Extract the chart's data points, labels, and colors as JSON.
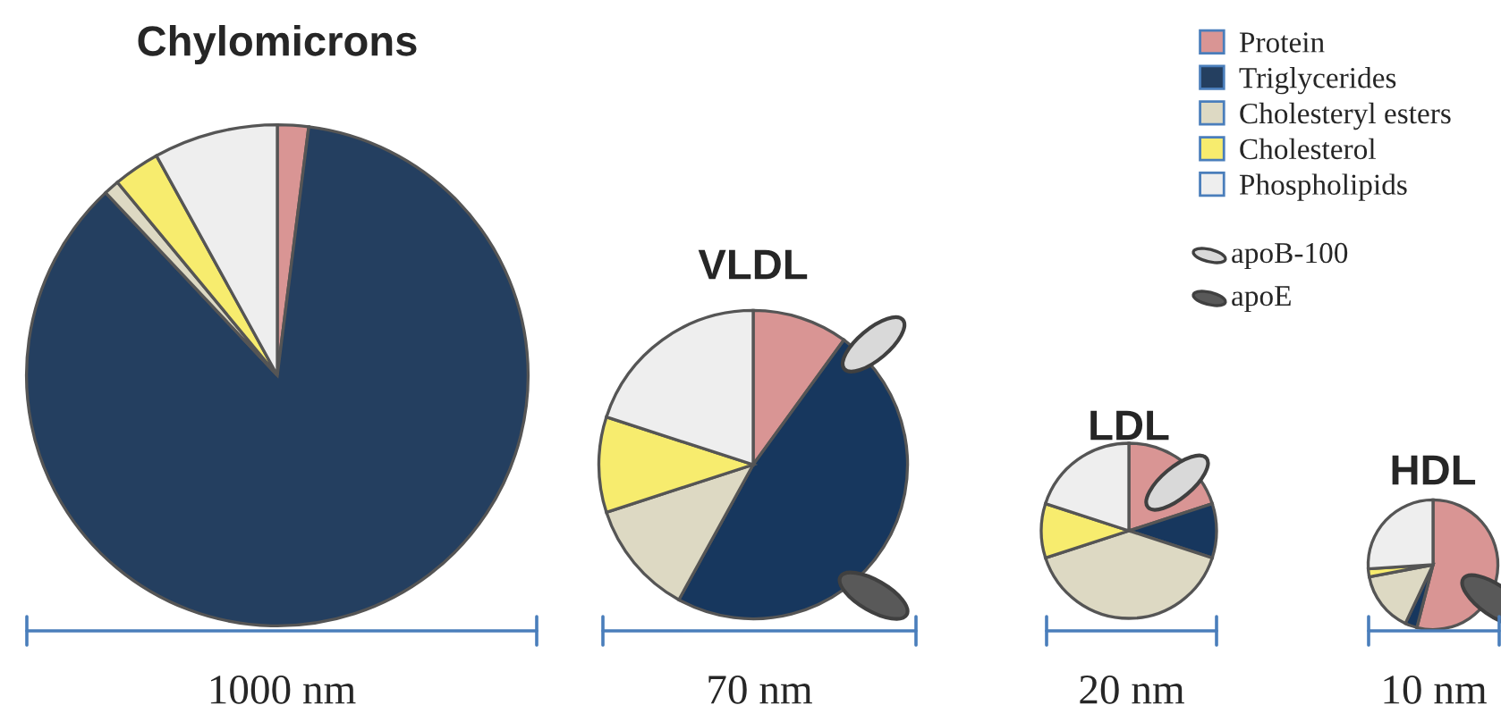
{
  "chart_data": [
    {
      "type": "pie",
      "title": "Chylomicrons",
      "categories": [
        "Protein",
        "Triglycerides",
        "Cholesteryl esters",
        "Cholesterol",
        "Phospholipids"
      ],
      "values": [
        2,
        86,
        1,
        3,
        8
      ],
      "colors": [
        "#d99594",
        "#243f60",
        "#ddd9c3",
        "#f7ec6e",
        "#eeeeee"
      ],
      "legend": "top right",
      "annotations": [
        "1000 nm",
        "apoB-100",
        "apoE"
      ]
    },
    {
      "type": "pie",
      "title": "VLDL",
      "categories": [
        null,
        null,
        null,
        null,
        null
      ],
      "values": [
        10,
        48,
        12,
        10,
        20
      ],
      "colors": [
        "#d99594",
        "#17375e",
        "#ddd9c3",
        "#f7ec6e",
        "#eeeeee"
      ],
      "annotations": [
        "70 nm"
      ]
    },
    {
      "type": "pie",
      "title": "LDL",
      "categories": [
        null,
        null,
        null,
        null,
        null
      ],
      "values": [
        20,
        10,
        40,
        10,
        20
      ],
      "colors": [
        "#d99594",
        "#17375e",
        "#ddd9c3",
        "#f7ec6e",
        "#eeeeee"
      ],
      "annotations": [
        "20 nm"
      ]
    },
    {
      "type": "pie",
      "title": "HDL",
      "categories": [
        null,
        null,
        null,
        null,
        null
      ],
      "values": [
        54,
        3,
        15,
        2,
        26
      ],
      "colors": [
        "#d99594",
        "#17375e",
        "#ddd9c3",
        "#f7ec6e",
        "#eeeeee"
      ],
      "annotations": [
        "10 nm"
      ]
    }
  ]
}
